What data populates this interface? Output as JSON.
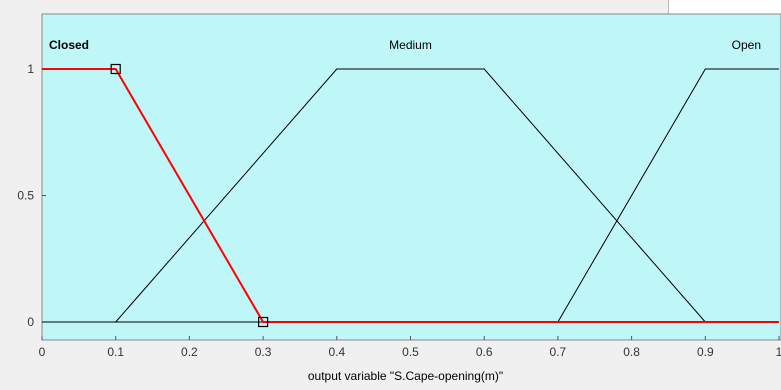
{
  "window": {
    "top_field_value": ""
  },
  "plot": {
    "background_color": "#bff6f7",
    "selected_color": "#ff0000",
    "line_color": "#000000",
    "xlabel": "output variable \"S.Cape-opening(m)\"",
    "x_ticks": [
      "0",
      "0.1",
      "0.2",
      "0.3",
      "0.4",
      "0.5",
      "0.6",
      "0.7",
      "0.8",
      "0.9",
      "1"
    ],
    "y_ticks": [
      "0",
      "0.5",
      "1"
    ]
  },
  "chart_data": {
    "type": "line",
    "title": "",
    "xlabel": "output variable \"S.Cape-opening(m)\"",
    "ylabel": "",
    "xlim": [
      0,
      1
    ],
    "ylim": [
      0,
      1
    ],
    "grid": false,
    "series": [
      {
        "name": "Closed",
        "selected": true,
        "x": [
          0,
          0.1,
          0.3,
          1
        ],
        "y": [
          1,
          1,
          0,
          0
        ],
        "handles": [
          [
            0.1,
            1
          ],
          [
            0.3,
            0
          ]
        ]
      },
      {
        "name": "Medium",
        "selected": false,
        "x": [
          0,
          0.1,
          0.4,
          0.6,
          0.9,
          1
        ],
        "y": [
          0,
          0,
          1,
          1,
          0,
          0
        ]
      },
      {
        "name": "Open",
        "selected": false,
        "x": [
          0,
          0.7,
          0.9,
          1
        ],
        "y": [
          0,
          0,
          1,
          1
        ]
      }
    ]
  }
}
